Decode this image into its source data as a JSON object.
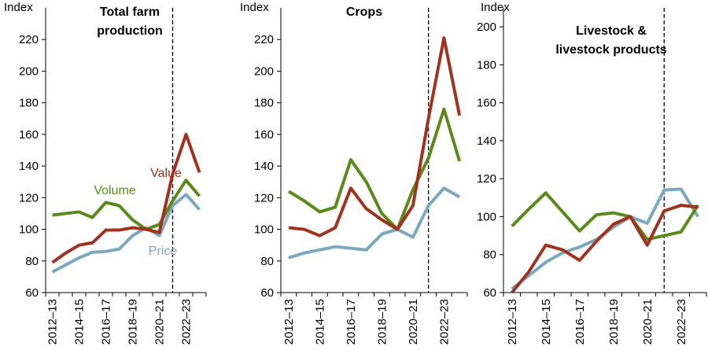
{
  "colors": {
    "Volume": "#5a8a1a",
    "Value": "#a0321e",
    "Price": "#7aa8be",
    "axis": "#000000"
  },
  "chart_data": [
    {
      "type": "line",
      "title": [
        "Total farm",
        "production"
      ],
      "ylabel": "Index",
      "ylim": [
        60,
        240
      ],
      "yticks": [
        60,
        80,
        100,
        120,
        140,
        160,
        180,
        200,
        220
      ],
      "x": [
        "2012–13",
        "2013–14",
        "2014–15",
        "2015–16",
        "2016–17",
        "2017–18",
        "2018–19",
        "2019–20",
        "2020–21",
        "2021–22",
        "2022–23",
        "2023–24"
      ],
      "xtick_labels": [
        "2012–13",
        "2014–15",
        "2016–17",
        "2018–19",
        "2020–21",
        "2022–23"
      ],
      "divider_after": "2021–22",
      "series": [
        {
          "name": "Volume",
          "values": [
            109,
            110,
            111,
            107.5,
            117,
            115,
            106,
            100,
            103,
            118,
            131,
            121
          ]
        },
        {
          "name": "Value",
          "values": [
            79,
            85,
            90,
            91.5,
            99.5,
            99.5,
            101,
            100,
            98,
            135,
            160,
            136
          ]
        },
        {
          "name": "Price",
          "values": [
            73,
            77.5,
            82,
            85.5,
            86,
            87.5,
            96,
            101,
            96,
            115,
            122,
            112.5
          ]
        }
      ],
      "series_labels": [
        "Volume",
        "Value",
        "Price"
      ]
    },
    {
      "type": "line",
      "title": [
        "Crops"
      ],
      "ylabel": "Index",
      "ylim": [
        60,
        240
      ],
      "yticks": [
        60,
        80,
        100,
        120,
        140,
        160,
        180,
        200,
        220
      ],
      "x": [
        "2012–13",
        "2013–14",
        "2014–15",
        "2015–16",
        "2016–17",
        "2017–18",
        "2018–19",
        "2019–20",
        "2020–21",
        "2021–22",
        "2022–23",
        "2023–24"
      ],
      "xtick_labels": [
        "2012–13",
        "2014–15",
        "2016–17",
        "2018–19",
        "2020–21",
        "2022–23"
      ],
      "divider_after": "2021–22",
      "series": [
        {
          "name": "Volume",
          "values": [
            124,
            118,
            111,
            114,
            144,
            130,
            110,
            100,
            125,
            145,
            176,
            143
          ]
        },
        {
          "name": "Value",
          "values": [
            101,
            100,
            96,
            101,
            126,
            113,
            106,
            100,
            115,
            170,
            221,
            172
          ]
        },
        {
          "name": "Price",
          "values": [
            82,
            85,
            87,
            89,
            88,
            87,
            97,
            100,
            95,
            115,
            126,
            120.5
          ]
        }
      ]
    },
    {
      "type": "line",
      "title": [
        "Livestock &",
        "livestock products"
      ],
      "ylabel": "Index",
      "ylim": [
        60,
        210
      ],
      "yticks": [
        60,
        80,
        100,
        120,
        140,
        160,
        180,
        200
      ],
      "x": [
        "2012–13",
        "2013–14",
        "2014–15",
        "2015–16",
        "2016–17",
        "2017–18",
        "2018–19",
        "2019–20",
        "2020–21",
        "2021–22",
        "2022–23",
        "2023–24"
      ],
      "xtick_labels": [
        "2012–13",
        "2014–15",
        "2016–17",
        "2018–19",
        "2020–21",
        "2022–23"
      ],
      "divider_after": "2021–22",
      "series": [
        {
          "name": "Volume",
          "values": [
            95,
            104,
            112.5,
            102.5,
            92.5,
            101,
            102,
            100,
            88,
            90,
            92,
            106
          ]
        },
        {
          "name": "Value",
          "values": [
            60,
            71,
            85,
            82.5,
            77,
            87,
            96,
            100,
            85,
            103,
            106,
            105
          ]
        },
        {
          "name": "Price",
          "values": [
            62,
            69,
            76,
            81,
            84,
            88,
            94.5,
            100,
            96.5,
            114,
            114.5,
            100
          ]
        }
      ]
    }
  ]
}
